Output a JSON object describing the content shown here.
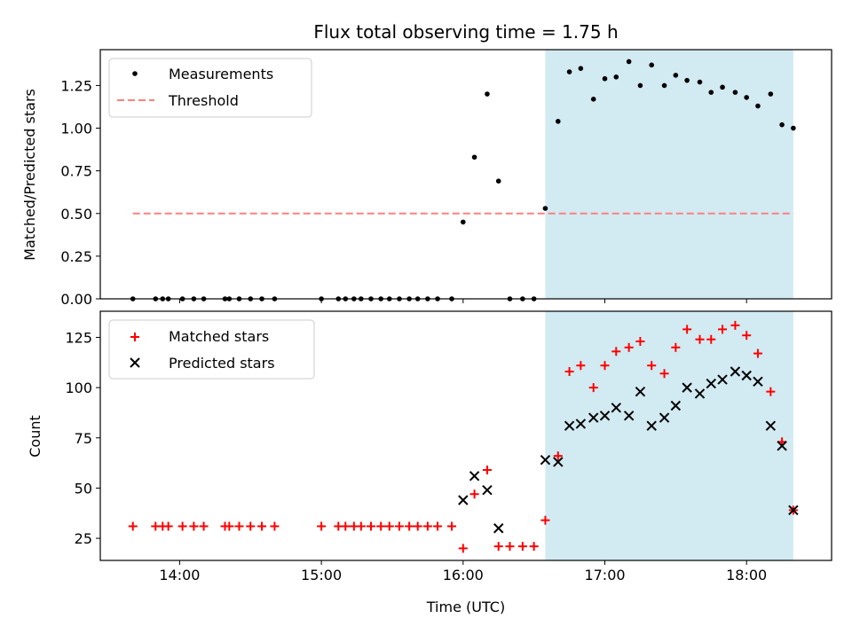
{
  "chart_data": {
    "title": "Flux total observing time = 1.75 h",
    "xlabel": "Time (UTC)",
    "x_tick_labels": [
      "14:00",
      "15:00",
      "16:00",
      "17:00",
      "18:00"
    ],
    "x_tick_values_hours": [
      14,
      15,
      16,
      17,
      18
    ],
    "xlim_hours": [
      13.44,
      18.6
    ],
    "shaded_interval_hours": [
      16.58,
      18.33
    ],
    "shade_color": "#add8e6",
    "panels": [
      {
        "type": "scatter",
        "ylabel": "Matched/Predicted stars",
        "ylim": [
          0,
          1.46
        ],
        "y_tick_labels": [
          "0.00",
          "0.25",
          "0.50",
          "0.75",
          "1.00",
          "1.25"
        ],
        "y_tick_values": [
          0,
          0.25,
          0.5,
          0.75,
          1.0,
          1.25
        ],
        "legend_position": "upper-left",
        "series": [
          {
            "name": "Measurements",
            "marker": "dot",
            "color": "#000000",
            "points": [
              [
                13.67,
                0
              ],
              [
                13.83,
                0
              ],
              [
                13.88,
                0
              ],
              [
                13.92,
                0
              ],
              [
                14.02,
                0
              ],
              [
                14.1,
                0
              ],
              [
                14.17,
                0
              ],
              [
                14.32,
                0
              ],
              [
                14.35,
                0
              ],
              [
                14.42,
                0
              ],
              [
                14.5,
                0
              ],
              [
                14.58,
                0
              ],
              [
                14.67,
                0
              ],
              [
                15.0,
                0
              ],
              [
                15.12,
                0
              ],
              [
                15.17,
                0
              ],
              [
                15.23,
                0
              ],
              [
                15.28,
                0
              ],
              [
                15.35,
                0
              ],
              [
                15.42,
                0
              ],
              [
                15.48,
                0
              ],
              [
                15.55,
                0
              ],
              [
                15.62,
                0
              ],
              [
                15.68,
                0
              ],
              [
                15.75,
                0
              ],
              [
                15.82,
                0
              ],
              [
                15.92,
                0
              ],
              [
                16.0,
                0.45
              ],
              [
                16.08,
                0.83
              ],
              [
                16.17,
                1.2
              ],
              [
                16.25,
                0.69
              ],
              [
                16.33,
                0
              ],
              [
                16.42,
                0
              ],
              [
                16.5,
                0
              ],
              [
                16.58,
                0.53
              ],
              [
                16.67,
                1.04
              ],
              [
                16.75,
                1.33
              ],
              [
                16.83,
                1.35
              ],
              [
                16.92,
                1.17
              ],
              [
                17.0,
                1.29
              ],
              [
                17.08,
                1.3
              ],
              [
                17.17,
                1.39
              ],
              [
                17.25,
                1.25
              ],
              [
                17.33,
                1.37
              ],
              [
                17.42,
                1.25
              ],
              [
                17.5,
                1.31
              ],
              [
                17.58,
                1.28
              ],
              [
                17.67,
                1.27
              ],
              [
                17.75,
                1.21
              ],
              [
                17.83,
                1.24
              ],
              [
                17.92,
                1.21
              ],
              [
                18.0,
                1.18
              ],
              [
                18.08,
                1.13
              ],
              [
                18.17,
                1.2
              ],
              [
                18.25,
                1.02
              ],
              [
                18.33,
                1.0
              ]
            ]
          },
          {
            "name": "Threshold",
            "marker": "dashed-line",
            "color": "#ff7f7f",
            "points": [
              [
                13.67,
                0.5
              ],
              [
                18.33,
                0.5
              ]
            ]
          }
        ]
      },
      {
        "type": "scatter",
        "ylabel": "Count",
        "ylim": [
          14,
          138
        ],
        "y_tick_labels": [
          "25",
          "50",
          "75",
          "100",
          "125"
        ],
        "y_tick_values": [
          25,
          50,
          75,
          100,
          125
        ],
        "legend_position": "upper-left",
        "series": [
          {
            "name": "Matched stars",
            "marker": "plus",
            "color": "#ff0000",
            "points": [
              [
                13.67,
                31
              ],
              [
                13.83,
                31
              ],
              [
                13.88,
                31
              ],
              [
                13.92,
                31
              ],
              [
                14.02,
                31
              ],
              [
                14.1,
                31
              ],
              [
                14.17,
                31
              ],
              [
                14.32,
                31
              ],
              [
                14.35,
                31
              ],
              [
                14.42,
                31
              ],
              [
                14.5,
                31
              ],
              [
                14.58,
                31
              ],
              [
                14.67,
                31
              ],
              [
                15.0,
                31
              ],
              [
                15.12,
                31
              ],
              [
                15.17,
                31
              ],
              [
                15.23,
                31
              ],
              [
                15.28,
                31
              ],
              [
                15.35,
                31
              ],
              [
                15.42,
                31
              ],
              [
                15.48,
                31
              ],
              [
                15.55,
                31
              ],
              [
                15.62,
                31
              ],
              [
                15.68,
                31
              ],
              [
                15.75,
                31
              ],
              [
                15.82,
                31
              ],
              [
                15.92,
                31
              ],
              [
                16.0,
                20
              ],
              [
                16.08,
                47
              ],
              [
                16.17,
                59
              ],
              [
                16.25,
                21
              ],
              [
                16.33,
                21
              ],
              [
                16.42,
                21
              ],
              [
                16.5,
                21
              ],
              [
                16.58,
                34
              ],
              [
                16.67,
                66
              ],
              [
                16.75,
                108
              ],
              [
                16.83,
                111
              ],
              [
                16.92,
                100
              ],
              [
                17.0,
                111
              ],
              [
                17.08,
                118
              ],
              [
                17.17,
                120
              ],
              [
                17.25,
                123
              ],
              [
                17.33,
                111
              ],
              [
                17.42,
                107
              ],
              [
                17.5,
                120
              ],
              [
                17.58,
                129
              ],
              [
                17.67,
                124
              ],
              [
                17.75,
                124
              ],
              [
                17.83,
                129
              ],
              [
                17.92,
                131
              ],
              [
                18.0,
                126
              ],
              [
                18.08,
                117
              ],
              [
                18.17,
                98
              ],
              [
                18.25,
                73
              ],
              [
                18.33,
                39
              ]
            ]
          },
          {
            "name": "Predicted stars",
            "marker": "x",
            "color": "#000000",
            "points": [
              [
                16.0,
                44
              ],
              [
                16.08,
                56
              ],
              [
                16.17,
                49
              ],
              [
                16.25,
                30
              ],
              [
                16.58,
                64
              ],
              [
                16.67,
                63
              ],
              [
                16.75,
                81
              ],
              [
                16.83,
                82
              ],
              [
                16.92,
                85
              ],
              [
                17.0,
                86
              ],
              [
                17.08,
                90
              ],
              [
                17.17,
                86
              ],
              [
                17.25,
                98
              ],
              [
                17.33,
                81
              ],
              [
                17.42,
                85
              ],
              [
                17.5,
                91
              ],
              [
                17.58,
                100
              ],
              [
                17.67,
                97
              ],
              [
                17.75,
                102
              ],
              [
                17.83,
                104
              ],
              [
                17.92,
                108
              ],
              [
                18.0,
                106
              ],
              [
                18.08,
                103
              ],
              [
                18.17,
                81
              ],
              [
                18.25,
                71
              ],
              [
                18.33,
                39
              ]
            ]
          }
        ]
      }
    ]
  }
}
